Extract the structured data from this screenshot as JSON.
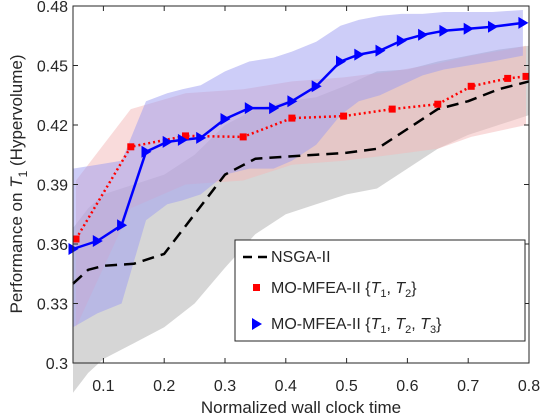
{
  "chart_data": {
    "type": "line",
    "xlabel": "Normalized wall clock time",
    "ylabel_prefix": "Performance on ",
    "ylabel_var": "T",
    "ylabel_sub": "1",
    "ylabel_suffix": " (Hypervolume)",
    "xlim": [
      0.05,
      0.8
    ],
    "ylim": [
      0.3,
      0.48
    ],
    "xticks": [
      "0.1",
      "0.2",
      "0.3",
      "0.4",
      "0.5",
      "0.6",
      "0.7",
      "0.8"
    ],
    "yticks": [
      "0.3",
      "0.33",
      "0.36",
      "0.39",
      "0.42",
      "0.45",
      "0.48"
    ],
    "grid": false,
    "legend_position": "bottom-right",
    "series": [
      {
        "name": "NSGA-II",
        "color": "#000000",
        "style": "dashed",
        "marker": "none",
        "band_color": "#c8c8c8",
        "x": [
          0.05,
          0.075,
          0.1,
          0.15,
          0.2,
          0.25,
          0.3,
          0.35,
          0.4,
          0.45,
          0.5,
          0.55,
          0.6,
          0.65,
          0.7,
          0.75,
          0.8
        ],
        "y": [
          0.34,
          0.347,
          0.349,
          0.35,
          0.355,
          0.375,
          0.395,
          0.403,
          0.404,
          0.405,
          0.406,
          0.408,
          0.418,
          0.428,
          0.432,
          0.438,
          0.442
        ],
        "band_upper": [
          0.368,
          0.378,
          0.385,
          0.39,
          0.395,
          0.405,
          0.42,
          0.428,
          0.432,
          0.434,
          0.44,
          0.447,
          0.448,
          0.452,
          0.455,
          0.458,
          0.46
        ],
        "band_lower": [
          0.285,
          0.295,
          0.302,
          0.31,
          0.318,
          0.33,
          0.348,
          0.365,
          0.375,
          0.38,
          0.385,
          0.388,
          0.398,
          0.408,
          0.415,
          0.42,
          0.425
        ]
      },
      {
        "name": "MO-MFEA-II {T1, T2}",
        "legend_main": "MO-MFEA-II {",
        "legend_vars": [
          "T",
          "T"
        ],
        "legend_subs": [
          "1",
          "2"
        ],
        "color": "#ff0000",
        "style": "dotted",
        "marker": "square",
        "band_color": "#f4b8b8",
        "x": [
          0.055,
          0.145,
          0.235,
          0.33,
          0.41,
          0.495,
          0.575,
          0.65,
          0.705,
          0.765,
          0.795
        ],
        "y": [
          0.3625,
          0.409,
          0.4145,
          0.414,
          0.4235,
          0.4245,
          0.428,
          0.4305,
          0.4395,
          0.4435,
          0.4445
        ],
        "band_upper": [
          0.392,
          0.428,
          0.436,
          0.438,
          0.442,
          0.444,
          0.447,
          0.451,
          0.455,
          0.458,
          0.46
        ],
        "band_lower": [
          0.318,
          0.378,
          0.39,
          0.392,
          0.4,
          0.402,
          0.405,
          0.408,
          0.414,
          0.418,
          0.42
        ]
      },
      {
        "name": "MO-MFEA-II {T1, T2, T3}",
        "legend_main": "MO-MFEA-II {",
        "legend_vars": [
          "T",
          "T",
          "T"
        ],
        "legend_subs": [
          "1",
          "2",
          "3"
        ],
        "color": "#0000ff",
        "style": "solid",
        "marker": "triangle-right",
        "band_color": "#9b9bf2",
        "x": [
          0.05,
          0.09,
          0.13,
          0.17,
          0.205,
          0.23,
          0.26,
          0.3,
          0.34,
          0.38,
          0.41,
          0.45,
          0.49,
          0.52,
          0.555,
          0.59,
          0.625,
          0.66,
          0.7,
          0.74,
          0.79
        ],
        "y": [
          0.3575,
          0.3615,
          0.3695,
          0.4065,
          0.4115,
          0.4125,
          0.4135,
          0.423,
          0.4285,
          0.4285,
          0.432,
          0.4395,
          0.452,
          0.4555,
          0.4575,
          0.4625,
          0.4655,
          0.4675,
          0.4685,
          0.4695,
          0.4715
        ],
        "band_upper": [
          0.398,
          0.4,
          0.402,
          0.432,
          0.436,
          0.438,
          0.44,
          0.447,
          0.452,
          0.454,
          0.457,
          0.462,
          0.47,
          0.473,
          0.475,
          0.476,
          0.476,
          0.477,
          0.477,
          0.477,
          0.478
        ],
        "band_lower": [
          0.318,
          0.325,
          0.33,
          0.372,
          0.38,
          0.382,
          0.385,
          0.395,
          0.398,
          0.398,
          0.402,
          0.41,
          0.425,
          0.432,
          0.435,
          0.44,
          0.445,
          0.448,
          0.45,
          0.452,
          0.455
        ]
      }
    ]
  }
}
